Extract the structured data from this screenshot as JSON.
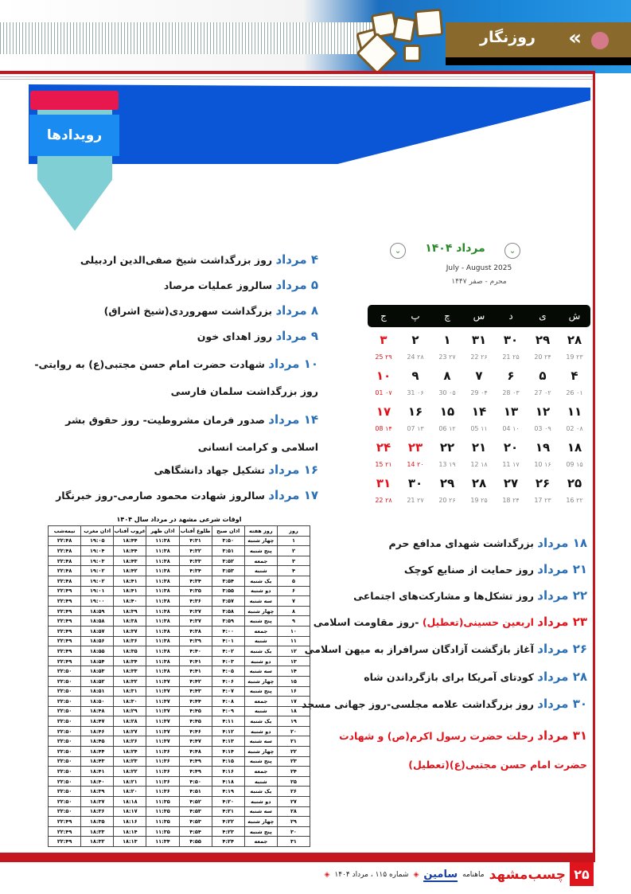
{
  "header": {
    "section_title": "روزنگار",
    "ribbon_title": "رویدادها"
  },
  "colors": {
    "accent_red": "#c4161c",
    "event_blue": "#2a6fb5",
    "banner_blue": "#0a56d6",
    "header_brown": "#8a6a2c"
  },
  "calendar": {
    "month": "مرداد ۱۴۰۴",
    "gregorian": "July - August 2025",
    "hijri": "محرم - صفر ۱۴۴۷",
    "prev_icon": "chevron-down-icon",
    "next_icon": "chevron-down-icon",
    "weekdays": [
      "ش",
      "ی",
      "د",
      "س",
      "چ",
      "پ",
      "ج"
    ],
    "weeks": [
      [
        {
          "d": "۲۸",
          "s": "۲۳ 19"
        },
        {
          "d": "۲۹",
          "s": "۲۴ 20"
        },
        {
          "d": "۳۰",
          "s": "۲۵ 21"
        },
        {
          "d": "۳۱",
          "s": "۲۶ 22"
        },
        {
          "d": "۱",
          "s": "۲۷ 23"
        },
        {
          "d": "۲",
          "s": "۲۸ 24"
        },
        {
          "d": "۳",
          "s": "۲۹ 25",
          "holiday": true
        }
      ],
      [
        {
          "d": "۴",
          "s": "۰۱ 26"
        },
        {
          "d": "۵",
          "s": "۰۲ 27"
        },
        {
          "d": "۶",
          "s": "۰۳ 28"
        },
        {
          "d": "۷",
          "s": "۰۴ 29"
        },
        {
          "d": "۸",
          "s": "۰۵ 30"
        },
        {
          "d": "۹",
          "s": "۰۶ 31"
        },
        {
          "d": "۱۰",
          "s": "۰۷ 01",
          "holiday": true
        }
      ],
      [
        {
          "d": "۱۱",
          "s": "۰۸ 02"
        },
        {
          "d": "۱۲",
          "s": "۰۹ 03"
        },
        {
          "d": "۱۳",
          "s": "۱۰ 04"
        },
        {
          "d": "۱۴",
          "s": "۱۱ 05"
        },
        {
          "d": "۱۵",
          "s": "۱۲ 06"
        },
        {
          "d": "۱۶",
          "s": "۱۳ 07"
        },
        {
          "d": "۱۷",
          "s": "۱۴ 08",
          "holiday": true
        }
      ],
      [
        {
          "d": "۱۸",
          "s": "۱۵ 09"
        },
        {
          "d": "۱۹",
          "s": "۱۶ 10"
        },
        {
          "d": "۲۰",
          "s": "۱۷ 11"
        },
        {
          "d": "۲۱",
          "s": "۱۸ 12"
        },
        {
          "d": "۲۲",
          "s": "۱۹ 13"
        },
        {
          "d": "۲۳",
          "s": "۲۰ 14",
          "holiday": true
        },
        {
          "d": "۲۴",
          "s": "۲۱ 15",
          "holiday": true
        }
      ],
      [
        {
          "d": "۲۵",
          "s": "۲۲ 16"
        },
        {
          "d": "۲۶",
          "s": "۲۳ 17"
        },
        {
          "d": "۲۷",
          "s": "۲۴ 18"
        },
        {
          "d": "۲۸",
          "s": "۲۵ 19"
        },
        {
          "d": "۲۹",
          "s": "۲۶ 20"
        },
        {
          "d": "۳۰",
          "s": "۲۷ 21"
        },
        {
          "d": "۳۱",
          "s": "۲۸ 22",
          "holiday": true
        }
      ]
    ]
  },
  "events_left": [
    {
      "date": "۴ مرداد",
      "text": "روز بزرگداشت شیخ صفی‌الدین اردبیلی"
    },
    {
      "date": "۵ مرداد",
      "text": "سالروز عملیات مرصاد"
    },
    {
      "date": "۸ مرداد",
      "text": "بزرگداشت سهروردی(شیخ اشراق)"
    },
    {
      "date": "۹ مرداد",
      "text": "روز اهدای خون"
    },
    {
      "date": "۱۰ مرداد",
      "text": "شهادت حضرت امام حسن مجتبی(ع) به روایتی-روز بزرگداشت سلمان فارسی"
    },
    {
      "date": "۱۴ مرداد",
      "text": "صدور فرمان مشروطیت- روز حقوق بشر اسلامی و کرامت انسانی"
    },
    {
      "date": "۱۶ مرداد",
      "text": "تشکیل جهاد دانشگاهی"
    },
    {
      "date": "۱۷ مرداد",
      "text": "سالروز شهادت محمود صارمی-روز خبرنگار"
    }
  ],
  "events_right": [
    {
      "date": "۱۸ مرداد",
      "text": "بزرگداشت شهدای مدافع حرم"
    },
    {
      "date": "۲۱ مرداد",
      "text": "روز حمایت از صنایع کوچک"
    },
    {
      "date": "۲۲ مرداد",
      "text": "روز تشکل‌ها و مشارکت‌های اجتماعی"
    },
    {
      "date": "۲۳ مرداد",
      "text": "اربعین حسینی(تعطیل)",
      "suffix": " -روز مقاومت اسلامی",
      "holiday": true
    },
    {
      "date": "۲۶ مرداد",
      "text": "آغاز بازگشت آزادگان سرافراز به میهن اسلامی"
    },
    {
      "date": "۲۸ مرداد",
      "text": "کودتای آمریکا برای بازگرداندن شاه"
    },
    {
      "date": "۳۰ مرداد",
      "text": "روز بزرگداشت علامه مجلسی-روز جهانی مسجد"
    },
    {
      "date": "۳۱ مرداد",
      "text": "رحلت حضرت رسول اکرم(ص) و شهادت حضرت امام حسن مجتبی(ع)(تعطیل)",
      "holiday": true
    }
  ],
  "prayer_table": {
    "title": "اوقات شرعی مشهد در مرداد سال ۱۴۰۴",
    "headers": [
      "روز",
      "روز هفته",
      "اذان صبح",
      "طلوع آفتاب",
      "اذان ظهر",
      "غروب آفتاب",
      "اذان مغرب",
      "نیمه‌شب"
    ],
    "rows": [
      [
        "۱",
        "چهار شنبه",
        "۳:۵۰",
        "۴:۳۱",
        "۱۱:۳۸",
        "۱۸:۴۴",
        "۱۹:۰۵",
        "۲۲:۴۸"
      ],
      [
        "۲",
        "پنج شنبه",
        "۳:۵۱",
        "۴:۳۲",
        "۱۱:۳۸",
        "۱۸:۴۴",
        "۱۹:۰۴",
        "۲۲:۴۸"
      ],
      [
        "۳",
        "جمعه",
        "۳:۵۲",
        "۴:۳۳",
        "۱۱:۳۸",
        "۱۸:۴۳",
        "۱۹:۰۳",
        "۲۲:۴۸"
      ],
      [
        "۴",
        "شنبه",
        "۳:۵۳",
        "۴:۳۴",
        "۱۱:۳۸",
        "۱۸:۴۲",
        "۱۹:۰۲",
        "۲۲:۴۸"
      ],
      [
        "۵",
        "یک شنبه",
        "۳:۵۴",
        "۴:۳۴",
        "۱۱:۳۸",
        "۱۸:۴۱",
        "۱۹:۰۲",
        "۲۲:۴۸"
      ],
      [
        "۶",
        "دو شنبه",
        "۳:۵۵",
        "۴:۳۵",
        "۱۱:۳۸",
        "۱۸:۴۱",
        "۱۹:۰۱",
        "۲۲:۴۹"
      ],
      [
        "۷",
        "سه شنبه",
        "۳:۵۷",
        "۴:۳۶",
        "۱۱:۳۸",
        "۱۸:۴۰",
        "۱۹:۰۰",
        "۲۲:۴۹"
      ],
      [
        "۸",
        "چهار شنبه",
        "۳:۵۸",
        "۴:۳۷",
        "۱۱:۳۸",
        "۱۸:۳۹",
        "۱۸:۵۹",
        "۲۲:۴۹"
      ],
      [
        "۹",
        "پنج شنبه",
        "۳:۵۹",
        "۴:۳۷",
        "۱۱:۳۸",
        "۱۸:۳۸",
        "۱۸:۵۸",
        "۲۲:۴۹"
      ],
      [
        "۱۰",
        "جمعه",
        "۴:۰۰",
        "۴:۳۸",
        "۱۱:۳۸",
        "۱۸:۳۷",
        "۱۸:۵۷",
        "۲۲:۴۹"
      ],
      [
        "۱۱",
        "شنبه",
        "۴:۰۱",
        "۴:۳۹",
        "۱۱:۳۸",
        "۱۸:۳۶",
        "۱۸:۵۶",
        "۲۲:۴۹"
      ],
      [
        "۱۲",
        "یک شنبه",
        "۴:۰۲",
        "۴:۴۰",
        "۱۱:۳۸",
        "۱۸:۳۵",
        "۱۸:۵۵",
        "۲۲:۴۹"
      ],
      [
        "۱۳",
        "دو شنبه",
        "۴:۰۳",
        "۴:۴۱",
        "۱۱:۳۸",
        "۱۸:۳۴",
        "۱۸:۵۴",
        "۲۲:۴۹"
      ],
      [
        "۱۴",
        "سه شنبه",
        "۴:۰۵",
        "۴:۴۱",
        "۱۱:۳۸",
        "۱۸:۳۳",
        "۱۸:۵۳",
        "۲۲:۵۰"
      ],
      [
        "۱۵",
        "چهار شنبه",
        "۴:۰۶",
        "۴:۴۲",
        "۱۱:۳۷",
        "۱۸:۳۲",
        "۱۸:۵۲",
        "۲۲:۵۰"
      ],
      [
        "۱۶",
        "پنج شنبه",
        "۴:۰۷",
        "۴:۴۳",
        "۱۱:۳۷",
        "۱۸:۳۱",
        "۱۸:۵۱",
        "۲۲:۵۰"
      ],
      [
        "۱۷",
        "جمعه",
        "۴:۰۸",
        "۴:۴۴",
        "۱۱:۳۷",
        "۱۸:۳۰",
        "۱۸:۵۰",
        "۲۲:۵۰"
      ],
      [
        "۱۸",
        "شنبه",
        "۴:۰۹",
        "۴:۴۵",
        "۱۱:۳۷",
        "۱۸:۲۹",
        "۱۸:۴۸",
        "۲۲:۵۰"
      ],
      [
        "۱۹",
        "یک شنبه",
        "۴:۱۱",
        "۴:۴۵",
        "۱۱:۳۷",
        "۱۸:۲۸",
        "۱۸:۴۷",
        "۲۲:۵۰"
      ],
      [
        "۲۰",
        "دو شنبه",
        "۴:۱۲",
        "۴:۴۶",
        "۱۱:۳۷",
        "۱۸:۲۷",
        "۱۸:۴۶",
        "۲۲:۵۰"
      ],
      [
        "۲۱",
        "سه شنبه",
        "۴:۱۳",
        "۴:۴۷",
        "۱۱:۳۷",
        "۱۸:۲۶",
        "۱۸:۴۵",
        "۲۲:۵۰"
      ],
      [
        "۲۲",
        "چهار شنبه",
        "۴:۱۴",
        "۴:۴۸",
        "۱۱:۳۶",
        "۱۸:۲۴",
        "۱۸:۴۴",
        "۲۲:۵۰"
      ],
      [
        "۲۳",
        "پنج شنبه",
        "۴:۱۵",
        "۴:۴۹",
        "۱۱:۳۶",
        "۱۸:۲۳",
        "۱۸:۴۳",
        "۲۲:۵۰"
      ],
      [
        "۲۴",
        "جمعه",
        "۴:۱۶",
        "۴:۴۹",
        "۱۱:۳۶",
        "۱۸:۲۲",
        "۱۸:۴۱",
        "۲۲:۵۰"
      ],
      [
        "۲۵",
        "شنبه",
        "۴:۱۸",
        "۴:۵۰",
        "۱۱:۳۶",
        "۱۸:۲۱",
        "۱۸:۴۰",
        "۲۲:۵۰"
      ],
      [
        "۲۶",
        "یک شنبه",
        "۴:۱۹",
        "۴:۵۱",
        "۱۱:۳۶",
        "۱۸:۲۰",
        "۱۸:۳۹",
        "۲۲:۵۰"
      ],
      [
        "۲۷",
        "دو شنبه",
        "۴:۲۰",
        "۴:۵۲",
        "۱۱:۳۵",
        "۱۸:۱۸",
        "۱۸:۳۷",
        "۲۲:۵۰"
      ],
      [
        "۲۸",
        "سه شنبه",
        "۴:۲۱",
        "۴:۵۳",
        "۱۱:۳۵",
        "۱۸:۱۷",
        "۱۸:۳۶",
        "۲۲:۵۰"
      ],
      [
        "۲۹",
        "چهار شنبه",
        "۴:۲۲",
        "۴:۵۳",
        "۱۱:۳۵",
        "۱۸:۱۶",
        "۱۸:۳۵",
        "۲۲:۴۹"
      ],
      [
        "۳۰",
        "پنج شنبه",
        "۴:۲۳",
        "۴:۵۴",
        "۱۱:۳۵",
        "۱۸:۱۴",
        "۱۸:۳۳",
        "۲۲:۴۹"
      ],
      [
        "۳۱",
        "جمعه",
        "۴:۲۴",
        "۴:۵۵",
        "۱۱:۳۴",
        "۱۸:۱۳",
        "۱۸:۳۲",
        "۲۲:۴۹"
      ]
    ]
  },
  "footer": {
    "page_number": "۲۵",
    "brand": "چسب‌مشهد",
    "magazine_label": "ماهنامه",
    "magazine_name": "سامین",
    "issue": "شماره ۱۱۵ ، مرداد ۱۴۰۴"
  }
}
